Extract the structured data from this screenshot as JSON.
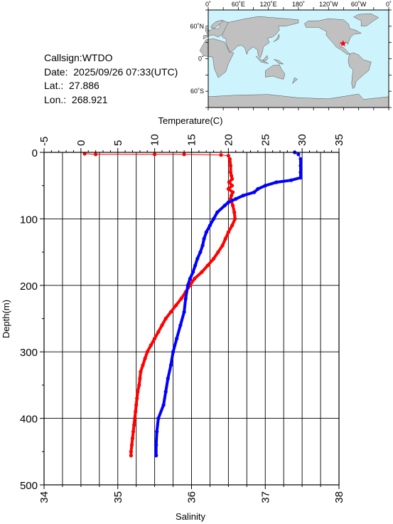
{
  "header": {
    "callsign_line": "Callsign:WTDO",
    "date_line": "Date:  2025/09/26 07:33(UTC)",
    "lat_line": "Lat.:  27.886",
    "lon_line": "Lon.:  268.921"
  },
  "map": {
    "lon_labels": [
      "0˚",
      "60˚E",
      "120˚E",
      "180˚",
      "120˚W",
      "60˚W",
      "0˚"
    ],
    "lat_labels": [
      "60˚N",
      "0˚",
      "60˚S"
    ],
    "ocean_color": "#cdf4fd",
    "land_color": "#c0c0c0",
    "marker_color": "#ff0000",
    "marker": {
      "lat": 27.886,
      "lon": 268.921
    }
  },
  "chart_data": {
    "type": "line",
    "top_axis_label": "Temperature(C)",
    "bottom_axis_label": "Salinity",
    "ylabel": "Depth(m)",
    "temperature_ticks": [
      "-5",
      "0",
      "5",
      "10",
      "15",
      "20",
      "25",
      "30",
      "35"
    ],
    "salinity_ticks": [
      "34",
      "35",
      "36",
      "37",
      "38"
    ],
    "depth_ticks": [
      "0",
      "100",
      "200",
      "300",
      "400",
      "500"
    ],
    "temperature_range": [
      -5,
      35
    ],
    "salinity_range": [
      34,
      38
    ],
    "depth_range": [
      0,
      500
    ],
    "grid": true,
    "series": [
      {
        "quantity": "temperature",
        "color": "#ff0000",
        "points": [
          [
            0.5,
            2
          ],
          [
            2,
            3
          ],
          [
            10,
            3
          ],
          [
            14,
            3
          ],
          [
            19,
            4
          ],
          [
            20,
            5
          ],
          [
            20.2,
            10
          ],
          [
            20.3,
            20
          ],
          [
            20.3,
            30
          ],
          [
            20.4,
            35
          ],
          [
            20.5,
            40
          ],
          [
            20.1,
            45
          ],
          [
            20.5,
            50
          ],
          [
            20.0,
            55
          ],
          [
            20.6,
            60
          ],
          [
            20.4,
            65
          ],
          [
            20.3,
            70
          ],
          [
            20.6,
            80
          ],
          [
            20.8,
            90
          ],
          [
            20.9,
            100
          ],
          [
            20.5,
            110
          ],
          [
            20.0,
            120
          ],
          [
            19.6,
            130
          ],
          [
            19.2,
            140
          ],
          [
            18.6,
            150
          ],
          [
            18.0,
            160
          ],
          [
            17.2,
            170
          ],
          [
            16.4,
            180
          ],
          [
            15.4,
            190
          ],
          [
            14.8,
            200
          ],
          [
            14.2,
            210
          ],
          [
            13.6,
            220
          ],
          [
            12.9,
            230
          ],
          [
            12.2,
            240
          ],
          [
            11.5,
            250
          ],
          [
            11.0,
            260
          ],
          [
            10.5,
            270
          ],
          [
            10.0,
            280
          ],
          [
            9.5,
            290
          ],
          [
            9.0,
            300
          ],
          [
            8.7,
            310
          ],
          [
            8.4,
            320
          ],
          [
            8.1,
            330
          ],
          [
            8.0,
            340
          ],
          [
            7.9,
            350
          ],
          [
            7.7,
            360
          ],
          [
            7.6,
            370
          ],
          [
            7.5,
            380
          ],
          [
            7.4,
            390
          ],
          [
            7.3,
            400
          ],
          [
            7.2,
            410
          ],
          [
            7.1,
            420
          ],
          [
            7.0,
            430
          ],
          [
            6.9,
            440
          ],
          [
            6.8,
            450
          ],
          [
            6.8,
            456
          ]
        ]
      },
      {
        "quantity": "salinity",
        "color": "#0000ff",
        "points": [
          [
            37.4,
            0
          ],
          [
            37.45,
            3
          ],
          [
            37.48,
            10
          ],
          [
            37.48,
            20
          ],
          [
            37.48,
            30
          ],
          [
            37.48,
            38
          ],
          [
            37.35,
            42
          ],
          [
            37.15,
            45
          ],
          [
            37.0,
            50
          ],
          [
            36.9,
            55
          ],
          [
            36.85,
            60
          ],
          [
            36.7,
            65
          ],
          [
            36.6,
            70
          ],
          [
            36.5,
            75
          ],
          [
            36.45,
            80
          ],
          [
            36.35,
            90
          ],
          [
            36.3,
            100
          ],
          [
            36.25,
            110
          ],
          [
            36.2,
            120
          ],
          [
            36.17,
            130
          ],
          [
            36.15,
            140
          ],
          [
            36.12,
            150
          ],
          [
            36.08,
            160
          ],
          [
            36.05,
            170
          ],
          [
            36.02,
            180
          ],
          [
            35.98,
            190
          ],
          [
            35.95,
            200
          ],
          [
            35.92,
            220
          ],
          [
            35.9,
            240
          ],
          [
            35.85,
            260
          ],
          [
            35.8,
            280
          ],
          [
            35.75,
            300
          ],
          [
            35.72,
            320
          ],
          [
            35.68,
            340
          ],
          [
            35.65,
            360
          ],
          [
            35.62,
            380
          ],
          [
            35.55,
            400
          ],
          [
            35.53,
            420
          ],
          [
            35.52,
            440
          ],
          [
            35.52,
            456
          ]
        ]
      }
    ]
  }
}
